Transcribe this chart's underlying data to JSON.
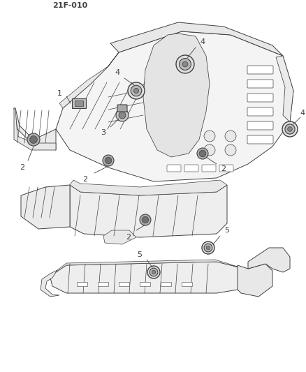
{
  "background_color": "#ffffff",
  "line_color": "#404040",
  "label_color": "#111111",
  "fig_width": 4.39,
  "fig_height": 5.33,
  "dpi": 100,
  "header_text": "21F-010",
  "lw": 0.7,
  "plug_gray": "#888888",
  "plug_light": "#cccccc",
  "body_fill": "#f4f4f4",
  "body_fill2": "#eeeeee"
}
